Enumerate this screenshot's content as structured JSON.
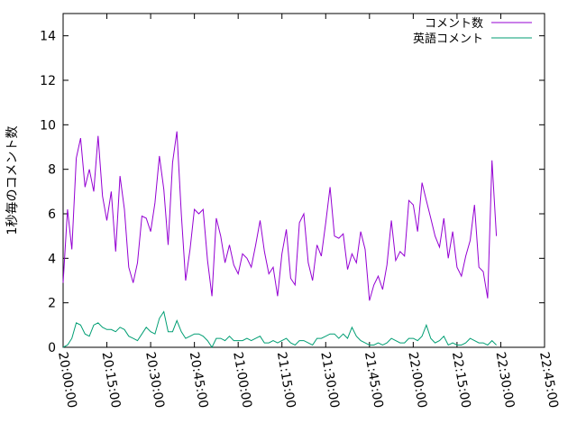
{
  "chart_data": {
    "type": "line",
    "title": "",
    "ylabel": "1秒毎のコメント数",
    "xlabel": "",
    "ylim": [
      0,
      15
    ],
    "xlim": [
      "20:00:00",
      "22:45:00"
    ],
    "yticks": [
      "0",
      "2",
      "4",
      "6",
      "8",
      "10",
      "12",
      "14"
    ],
    "xticks": [
      "20:00:00",
      "20:15:00",
      "20:30:00",
      "20:45:00",
      "21:00:00",
      "21:15:00",
      "21:30:00",
      "21:45:00",
      "22:00:00",
      "22:15:00",
      "22:30:00",
      "22:45:00"
    ],
    "grid": false,
    "legend_position": "top-right",
    "series": [
      {
        "name": "コメント数",
        "color": "#9400d3",
        "points": [
          [
            "20:00:00",
            2.9
          ],
          [
            "20:01:30",
            6.2
          ],
          [
            "20:03:00",
            4.4
          ],
          [
            "20:04:30",
            8.5
          ],
          [
            "20:06:00",
            9.4
          ],
          [
            "20:07:30",
            7.2
          ],
          [
            "20:09:00",
            8.0
          ],
          [
            "20:10:30",
            7.0
          ],
          [
            "20:12:00",
            9.5
          ],
          [
            "20:13:30",
            6.8
          ],
          [
            "20:15:00",
            5.7
          ],
          [
            "20:16:30",
            7.0
          ],
          [
            "20:18:00",
            4.3
          ],
          [
            "20:19:30",
            7.7
          ],
          [
            "20:21:00",
            6.2
          ],
          [
            "20:22:30",
            3.6
          ],
          [
            "20:24:00",
            2.9
          ],
          [
            "20:25:30",
            3.8
          ],
          [
            "20:27:00",
            5.9
          ],
          [
            "20:28:30",
            5.8
          ],
          [
            "20:30:00",
            5.2
          ],
          [
            "20:31:30",
            6.5
          ],
          [
            "20:33:00",
            8.6
          ],
          [
            "20:34:30",
            7.1
          ],
          [
            "20:36:00",
            4.6
          ],
          [
            "20:37:30",
            8.3
          ],
          [
            "20:39:00",
            9.7
          ],
          [
            "20:40:30",
            6.0
          ],
          [
            "20:42:00",
            3.0
          ],
          [
            "20:43:30",
            4.4
          ],
          [
            "20:45:00",
            6.2
          ],
          [
            "20:46:30",
            6.0
          ],
          [
            "20:48:00",
            6.2
          ],
          [
            "20:49:30",
            3.9
          ],
          [
            "20:51:00",
            2.3
          ],
          [
            "20:52:30",
            5.8
          ],
          [
            "20:54:00",
            5.0
          ],
          [
            "20:55:30",
            3.8
          ],
          [
            "20:57:00",
            4.6
          ],
          [
            "20:58:30",
            3.7
          ],
          [
            "21:00:00",
            3.3
          ],
          [
            "21:01:30",
            4.2
          ],
          [
            "21:03:00",
            4.0
          ],
          [
            "21:04:30",
            3.6
          ],
          [
            "21:06:00",
            4.6
          ],
          [
            "21:07:30",
            5.7
          ],
          [
            "21:09:00",
            4.3
          ],
          [
            "21:10:30",
            3.3
          ],
          [
            "21:12:00",
            3.6
          ],
          [
            "21:13:30",
            2.3
          ],
          [
            "21:15:00",
            4.2
          ],
          [
            "21:16:30",
            5.3
          ],
          [
            "21:18:00",
            3.1
          ],
          [
            "21:19:30",
            2.8
          ],
          [
            "21:21:00",
            5.6
          ],
          [
            "21:22:30",
            6.0
          ],
          [
            "21:24:00",
            3.8
          ],
          [
            "21:25:30",
            3.0
          ],
          [
            "21:27:00",
            4.6
          ],
          [
            "21:28:30",
            4.1
          ],
          [
            "21:30:00",
            5.6
          ],
          [
            "21:31:30",
            7.2
          ],
          [
            "21:33:00",
            5.0
          ],
          [
            "21:34:30",
            4.9
          ],
          [
            "21:36:00",
            5.1
          ],
          [
            "21:37:30",
            3.5
          ],
          [
            "21:39:00",
            4.2
          ],
          [
            "21:40:30",
            3.8
          ],
          [
            "21:42:00",
            5.2
          ],
          [
            "21:43:30",
            4.4
          ],
          [
            "21:45:00",
            2.1
          ],
          [
            "21:46:30",
            2.8
          ],
          [
            "21:48:00",
            3.2
          ],
          [
            "21:49:30",
            2.6
          ],
          [
            "21:51:00",
            3.7
          ],
          [
            "21:52:30",
            5.7
          ],
          [
            "21:54:00",
            3.9
          ],
          [
            "21:55:30",
            4.3
          ],
          [
            "21:57:00",
            4.1
          ],
          [
            "21:58:30",
            6.6
          ],
          [
            "22:00:00",
            6.4
          ],
          [
            "22:01:30",
            5.2
          ],
          [
            "22:03:00",
            7.4
          ],
          [
            "22:04:30",
            6.6
          ],
          [
            "22:06:00",
            5.8
          ],
          [
            "22:07:30",
            5.0
          ],
          [
            "22:09:00",
            4.5
          ],
          [
            "22:10:30",
            5.8
          ],
          [
            "22:12:00",
            4.0
          ],
          [
            "22:13:30",
            5.2
          ],
          [
            "22:15:00",
            3.6
          ],
          [
            "22:16:30",
            3.2
          ],
          [
            "22:18:00",
            4.1
          ],
          [
            "22:19:30",
            4.8
          ],
          [
            "22:21:00",
            6.4
          ],
          [
            "22:22:30",
            3.6
          ],
          [
            "22:24:00",
            3.4
          ],
          [
            "22:25:30",
            2.2
          ],
          [
            "22:27:00",
            8.4
          ],
          [
            "22:28:30",
            5.0
          ]
        ]
      },
      {
        "name": "英語コメント",
        "color": "#009e73",
        "points": [
          [
            "20:00:00",
            0.0
          ],
          [
            "20:01:30",
            0.1
          ],
          [
            "20:03:00",
            0.4
          ],
          [
            "20:04:30",
            1.1
          ],
          [
            "20:06:00",
            1.0
          ],
          [
            "20:07:30",
            0.6
          ],
          [
            "20:09:00",
            0.5
          ],
          [
            "20:10:30",
            1.0
          ],
          [
            "20:12:00",
            1.1
          ],
          [
            "20:13:30",
            0.9
          ],
          [
            "20:15:00",
            0.8
          ],
          [
            "20:16:30",
            0.8
          ],
          [
            "20:18:00",
            0.7
          ],
          [
            "20:19:30",
            0.9
          ],
          [
            "20:21:00",
            0.8
          ],
          [
            "20:22:30",
            0.5
          ],
          [
            "20:24:00",
            0.4
          ],
          [
            "20:25:30",
            0.3
          ],
          [
            "20:27:00",
            0.6
          ],
          [
            "20:28:30",
            0.9
          ],
          [
            "20:30:00",
            0.7
          ],
          [
            "20:31:30",
            0.6
          ],
          [
            "20:33:00",
            1.3
          ],
          [
            "20:34:30",
            1.6
          ],
          [
            "20:36:00",
            0.7
          ],
          [
            "20:37:30",
            0.7
          ],
          [
            "20:39:00",
            1.2
          ],
          [
            "20:40:30",
            0.7
          ],
          [
            "20:42:00",
            0.4
          ],
          [
            "20:43:30",
            0.5
          ],
          [
            "20:45:00",
            0.6
          ],
          [
            "20:46:30",
            0.6
          ],
          [
            "20:48:00",
            0.5
          ],
          [
            "20:49:30",
            0.3
          ],
          [
            "20:51:00",
            0.0
          ],
          [
            "20:52:30",
            0.4
          ],
          [
            "20:54:00",
            0.4
          ],
          [
            "20:55:30",
            0.3
          ],
          [
            "20:57:00",
            0.5
          ],
          [
            "20:58:30",
            0.3
          ],
          [
            "21:00:00",
            0.3
          ],
          [
            "21:01:30",
            0.3
          ],
          [
            "21:03:00",
            0.4
          ],
          [
            "21:04:30",
            0.3
          ],
          [
            "21:06:00",
            0.4
          ],
          [
            "21:07:30",
            0.5
          ],
          [
            "21:09:00",
            0.2
          ],
          [
            "21:10:30",
            0.2
          ],
          [
            "21:12:00",
            0.3
          ],
          [
            "21:13:30",
            0.2
          ],
          [
            "21:15:00",
            0.3
          ],
          [
            "21:16:30",
            0.4
          ],
          [
            "21:18:00",
            0.2
          ],
          [
            "21:19:30",
            0.1
          ],
          [
            "21:21:00",
            0.3
          ],
          [
            "21:22:30",
            0.3
          ],
          [
            "21:24:00",
            0.2
          ],
          [
            "21:25:30",
            0.1
          ],
          [
            "21:27:00",
            0.4
          ],
          [
            "21:28:30",
            0.4
          ],
          [
            "21:30:00",
            0.5
          ],
          [
            "21:31:30",
            0.6
          ],
          [
            "21:33:00",
            0.6
          ],
          [
            "21:34:30",
            0.4
          ],
          [
            "21:36:00",
            0.6
          ],
          [
            "21:37:30",
            0.4
          ],
          [
            "21:39:00",
            0.9
          ],
          [
            "21:40:30",
            0.5
          ],
          [
            "21:42:00",
            0.3
          ],
          [
            "21:43:30",
            0.2
          ],
          [
            "21:45:00",
            0.1
          ],
          [
            "21:46:30",
            0.1
          ],
          [
            "21:48:00",
            0.2
          ],
          [
            "21:49:30",
            0.1
          ],
          [
            "21:51:00",
            0.2
          ],
          [
            "21:52:30",
            0.4
          ],
          [
            "21:54:00",
            0.3
          ],
          [
            "21:55:30",
            0.2
          ],
          [
            "21:57:00",
            0.2
          ],
          [
            "21:58:30",
            0.4
          ],
          [
            "22:00:00",
            0.4
          ],
          [
            "22:01:30",
            0.3
          ],
          [
            "22:03:00",
            0.5
          ],
          [
            "22:04:30",
            1.0
          ],
          [
            "22:06:00",
            0.4
          ],
          [
            "22:07:30",
            0.2
          ],
          [
            "22:09:00",
            0.3
          ],
          [
            "22:10:30",
            0.5
          ],
          [
            "22:12:00",
            0.1
          ],
          [
            "22:13:30",
            0.2
          ],
          [
            "22:15:00",
            0.1
          ],
          [
            "22:16:30",
            0.1
          ],
          [
            "22:18:00",
            0.2
          ],
          [
            "22:19:30",
            0.4
          ],
          [
            "22:21:00",
            0.3
          ],
          [
            "22:22:30",
            0.2
          ],
          [
            "22:24:00",
            0.2
          ],
          [
            "22:25:30",
            0.1
          ],
          [
            "22:27:00",
            0.3
          ],
          [
            "22:28:30",
            0.1
          ]
        ]
      }
    ]
  }
}
